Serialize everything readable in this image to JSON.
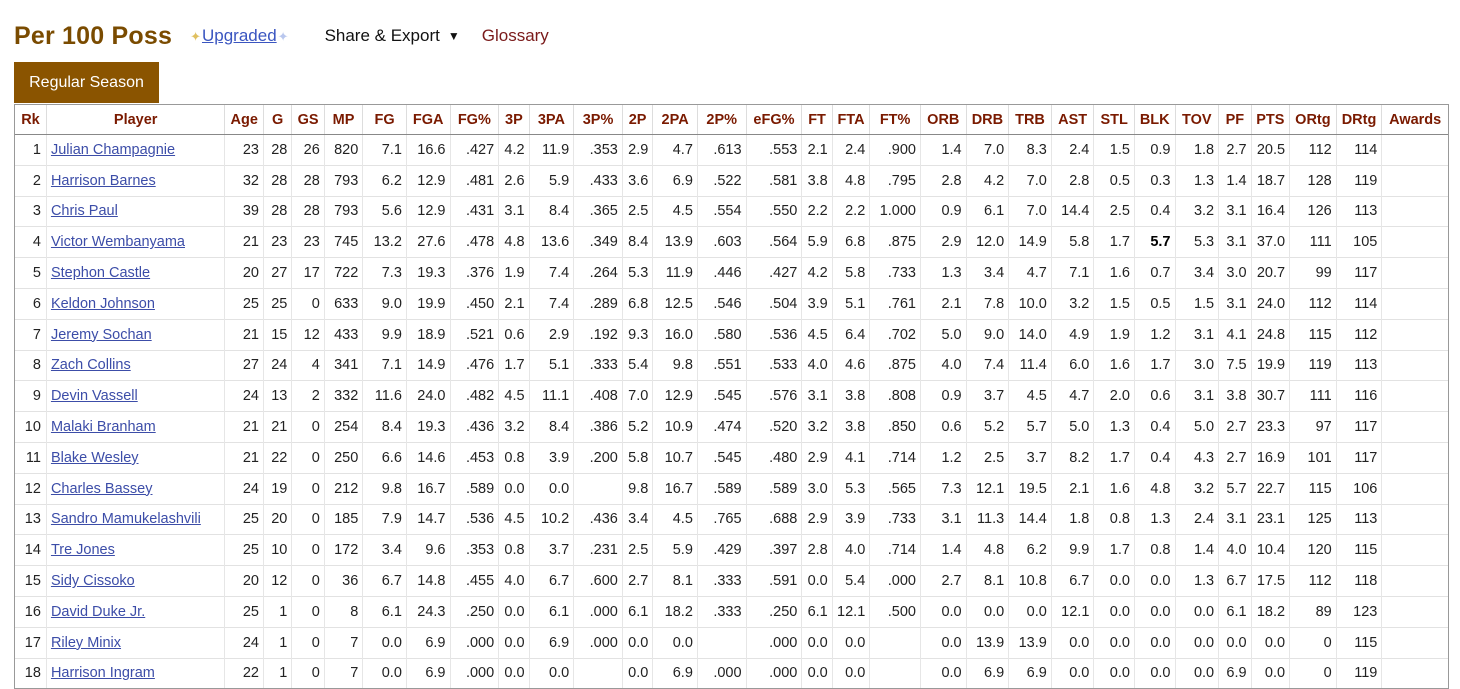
{
  "header": {
    "title": "Per 100 Poss",
    "upgraded": "Upgraded",
    "share_export": "Share & Export",
    "glossary": "Glossary"
  },
  "tab": {
    "label": "Regular Season"
  },
  "columns": [
    "Rk",
    "Player",
    "Age",
    "G",
    "GS",
    "MP",
    "FG",
    "FGA",
    "FG%",
    "3P",
    "3PA",
    "3P%",
    "2P",
    "2PA",
    "2P%",
    "eFG%",
    "FT",
    "FTA",
    "FT%",
    "ORB",
    "DRB",
    "TRB",
    "AST",
    "STL",
    "BLK",
    "TOV",
    "PF",
    "PTS",
    "ORtg",
    "DRtg",
    "Awards"
  ],
  "rows": [
    [
      "1",
      "Julian Champagnie",
      "23",
      "28",
      "26",
      "820",
      "7.1",
      "16.6",
      ".427",
      "4.2",
      "11.9",
      ".353",
      "2.9",
      "4.7",
      ".613",
      ".553",
      "2.1",
      "2.4",
      ".900",
      "1.4",
      "7.0",
      "8.3",
      "2.4",
      "1.5",
      "0.9",
      "1.8",
      "2.7",
      "20.5",
      "112",
      "114",
      ""
    ],
    [
      "2",
      "Harrison Barnes",
      "32",
      "28",
      "28",
      "793",
      "6.2",
      "12.9",
      ".481",
      "2.6",
      "5.9",
      ".433",
      "3.6",
      "6.9",
      ".522",
      ".581",
      "3.8",
      "4.8",
      ".795",
      "2.8",
      "4.2",
      "7.0",
      "2.8",
      "0.5",
      "0.3",
      "1.3",
      "1.4",
      "18.7",
      "128",
      "119",
      ""
    ],
    [
      "3",
      "Chris Paul",
      "39",
      "28",
      "28",
      "793",
      "5.6",
      "12.9",
      ".431",
      "3.1",
      "8.4",
      ".365",
      "2.5",
      "4.5",
      ".554",
      ".550",
      "2.2",
      "2.2",
      "1.000",
      "0.9",
      "6.1",
      "7.0",
      "14.4",
      "2.5",
      "0.4",
      "3.2",
      "3.1",
      "16.4",
      "126",
      "113",
      ""
    ],
    [
      "4",
      "Victor Wembanyama",
      "21",
      "23",
      "23",
      "745",
      "13.2",
      "27.6",
      ".478",
      "4.8",
      "13.6",
      ".349",
      "8.4",
      "13.9",
      ".603",
      ".564",
      "5.9",
      "6.8",
      ".875",
      "2.9",
      "12.0",
      "14.9",
      "5.8",
      "1.7",
      "5.7",
      "5.3",
      "3.1",
      "37.0",
      "111",
      "105",
      ""
    ],
    [
      "5",
      "Stephon Castle",
      "20",
      "27",
      "17",
      "722",
      "7.3",
      "19.3",
      ".376",
      "1.9",
      "7.4",
      ".264",
      "5.3",
      "11.9",
      ".446",
      ".427",
      "4.2",
      "5.8",
      ".733",
      "1.3",
      "3.4",
      "4.7",
      "7.1",
      "1.6",
      "0.7",
      "3.4",
      "3.0",
      "20.7",
      "99",
      "117",
      ""
    ],
    [
      "6",
      "Keldon Johnson",
      "25",
      "25",
      "0",
      "633",
      "9.0",
      "19.9",
      ".450",
      "2.1",
      "7.4",
      ".289",
      "6.8",
      "12.5",
      ".546",
      ".504",
      "3.9",
      "5.1",
      ".761",
      "2.1",
      "7.8",
      "10.0",
      "3.2",
      "1.5",
      "0.5",
      "1.5",
      "3.1",
      "24.0",
      "112",
      "114",
      ""
    ],
    [
      "7",
      "Jeremy Sochan",
      "21",
      "15",
      "12",
      "433",
      "9.9",
      "18.9",
      ".521",
      "0.6",
      "2.9",
      ".192",
      "9.3",
      "16.0",
      ".580",
      ".536",
      "4.5",
      "6.4",
      ".702",
      "5.0",
      "9.0",
      "14.0",
      "4.9",
      "1.9",
      "1.2",
      "3.1",
      "4.1",
      "24.8",
      "115",
      "112",
      ""
    ],
    [
      "8",
      "Zach Collins",
      "27",
      "24",
      "4",
      "341",
      "7.1",
      "14.9",
      ".476",
      "1.7",
      "5.1",
      ".333",
      "5.4",
      "9.8",
      ".551",
      ".533",
      "4.0",
      "4.6",
      ".875",
      "4.0",
      "7.4",
      "11.4",
      "6.0",
      "1.6",
      "1.7",
      "3.0",
      "7.5",
      "19.9",
      "119",
      "113",
      ""
    ],
    [
      "9",
      "Devin Vassell",
      "24",
      "13",
      "2",
      "332",
      "11.6",
      "24.0",
      ".482",
      "4.5",
      "11.1",
      ".408",
      "7.0",
      "12.9",
      ".545",
      ".576",
      "3.1",
      "3.8",
      ".808",
      "0.9",
      "3.7",
      "4.5",
      "4.7",
      "2.0",
      "0.6",
      "3.1",
      "3.8",
      "30.7",
      "111",
      "116",
      ""
    ],
    [
      "10",
      "Malaki Branham",
      "21",
      "21",
      "0",
      "254",
      "8.4",
      "19.3",
      ".436",
      "3.2",
      "8.4",
      ".386",
      "5.2",
      "10.9",
      ".474",
      ".520",
      "3.2",
      "3.8",
      ".850",
      "0.6",
      "5.2",
      "5.7",
      "5.0",
      "1.3",
      "0.4",
      "5.0",
      "2.7",
      "23.3",
      "97",
      "117",
      ""
    ],
    [
      "11",
      "Blake Wesley",
      "21",
      "22",
      "0",
      "250",
      "6.6",
      "14.6",
      ".453",
      "0.8",
      "3.9",
      ".200",
      "5.8",
      "10.7",
      ".545",
      ".480",
      "2.9",
      "4.1",
      ".714",
      "1.2",
      "2.5",
      "3.7",
      "8.2",
      "1.7",
      "0.4",
      "4.3",
      "2.7",
      "16.9",
      "101",
      "117",
      ""
    ],
    [
      "12",
      "Charles Bassey",
      "24",
      "19",
      "0",
      "212",
      "9.8",
      "16.7",
      ".589",
      "0.0",
      "0.0",
      "",
      "9.8",
      "16.7",
      ".589",
      ".589",
      "3.0",
      "5.3",
      ".565",
      "7.3",
      "12.1",
      "19.5",
      "2.1",
      "1.6",
      "4.8",
      "3.2",
      "5.7",
      "22.7",
      "115",
      "106",
      ""
    ],
    [
      "13",
      "Sandro Mamukelashvili",
      "25",
      "20",
      "0",
      "185",
      "7.9",
      "14.7",
      ".536",
      "4.5",
      "10.2",
      ".436",
      "3.4",
      "4.5",
      ".765",
      ".688",
      "2.9",
      "3.9",
      ".733",
      "3.1",
      "11.3",
      "14.4",
      "1.8",
      "0.8",
      "1.3",
      "2.4",
      "3.1",
      "23.1",
      "125",
      "113",
      ""
    ],
    [
      "14",
      "Tre Jones",
      "25",
      "10",
      "0",
      "172",
      "3.4",
      "9.6",
      ".353",
      "0.8",
      "3.7",
      ".231",
      "2.5",
      "5.9",
      ".429",
      ".397",
      "2.8",
      "4.0",
      ".714",
      "1.4",
      "4.8",
      "6.2",
      "9.9",
      "1.7",
      "0.8",
      "1.4",
      "4.0",
      "10.4",
      "120",
      "115",
      ""
    ],
    [
      "15",
      "Sidy Cissoko",
      "20",
      "12",
      "0",
      "36",
      "6.7",
      "14.8",
      ".455",
      "4.0",
      "6.7",
      ".600",
      "2.7",
      "8.1",
      ".333",
      ".591",
      "0.0",
      "5.4",
      ".000",
      "2.7",
      "8.1",
      "10.8",
      "6.7",
      "0.0",
      "0.0",
      "1.3",
      "6.7",
      "17.5",
      "112",
      "118",
      ""
    ],
    [
      "16",
      "David Duke Jr.",
      "25",
      "1",
      "0",
      "8",
      "6.1",
      "24.3",
      ".250",
      "0.0",
      "6.1",
      ".000",
      "6.1",
      "18.2",
      ".333",
      ".250",
      "6.1",
      "12.1",
      ".500",
      "0.0",
      "0.0",
      "0.0",
      "12.1",
      "0.0",
      "0.0",
      "0.0",
      "6.1",
      "18.2",
      "89",
      "123",
      ""
    ],
    [
      "17",
      "Riley Minix",
      "24",
      "1",
      "0",
      "7",
      "0.0",
      "6.9",
      ".000",
      "0.0",
      "6.9",
      ".000",
      "0.0",
      "0.0",
      "",
      ".000",
      "0.0",
      "0.0",
      "",
      "0.0",
      "13.9",
      "13.9",
      "0.0",
      "0.0",
      "0.0",
      "0.0",
      "0.0",
      "0.0",
      "0",
      "115",
      ""
    ],
    [
      "18",
      "Harrison Ingram",
      "22",
      "1",
      "0",
      "7",
      "0.0",
      "6.9",
      ".000",
      "0.0",
      "0.0",
      "",
      "0.0",
      "6.9",
      ".000",
      ".000",
      "0.0",
      "0.0",
      "",
      "0.0",
      "6.9",
      "6.9",
      "0.0",
      "0.0",
      "0.0",
      "0.0",
      "6.9",
      "0.0",
      "0",
      "119",
      ""
    ]
  ],
  "bold_cells": [
    {
      "row": 3,
      "col": 24
    }
  ]
}
